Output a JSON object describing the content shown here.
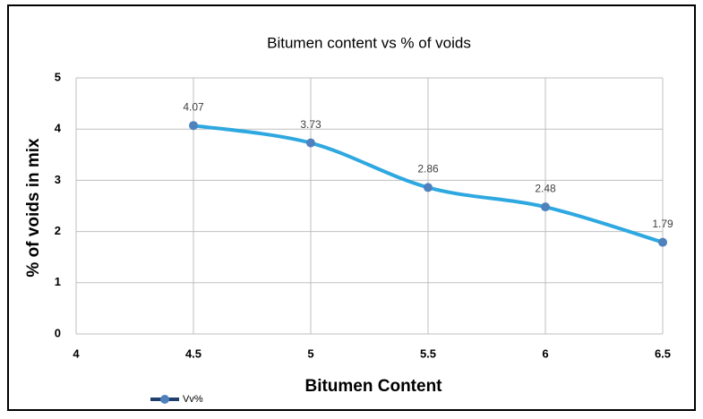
{
  "chart_data": {
    "type": "line",
    "title": "Bitumen content vs % of voids",
    "x_label": "Bitumen Content",
    "y_label": "% of voids in mix",
    "x": [
      4.5,
      5,
      5.5,
      6,
      6.5
    ],
    "series": [
      {
        "name": "Vv%",
        "color": "#2ea8e0",
        "marker_color": "#4f81bd",
        "values": [
          4.07,
          3.73,
          2.86,
          2.48,
          1.79
        ]
      }
    ],
    "xlim": [
      4,
      6.5
    ],
    "xticks": [
      4,
      4.5,
      5,
      5.5,
      6,
      6.5
    ],
    "ylim": [
      0,
      5
    ],
    "yticks": [
      0,
      1,
      2,
      3,
      4,
      5
    ],
    "grid": true,
    "legend": "bottom-left"
  }
}
